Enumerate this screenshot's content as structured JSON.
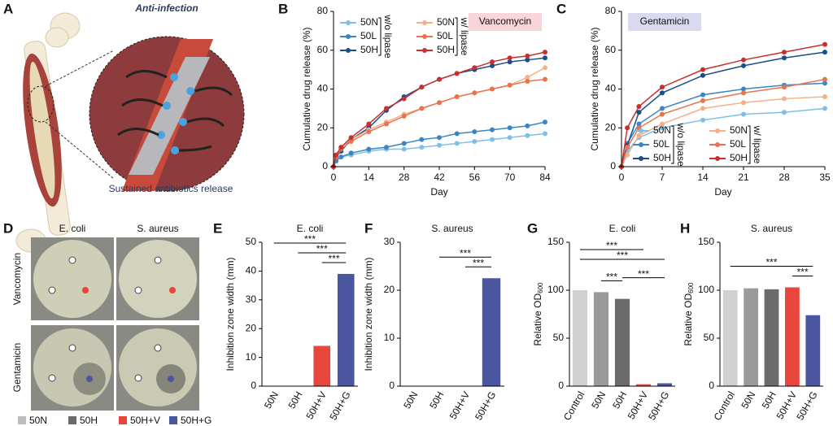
{
  "illustration": {
    "panel_label": "A",
    "title": "Anti-infection",
    "caption": "Sustained antibiotics release"
  },
  "photos": {
    "panel_label": "D",
    "columns": [
      "E. coli",
      "S. aureus"
    ],
    "rows": [
      "Vancomycin",
      "Gentamicin"
    ],
    "legend": [
      {
        "name": "50N",
        "color": "#bdbdbd"
      },
      {
        "name": "50H",
        "color": "#6b6b6b"
      },
      {
        "name": "50H+V",
        "color": "#e8463c"
      },
      {
        "name": "50H+G",
        "color": "#4a56a0"
      }
    ]
  },
  "chart_data": [
    {
      "panel_label": "B",
      "type": "line",
      "annotation": "Vancomycin",
      "annotation_color": "#f7d5d8",
      "xlabel": "Day",
      "ylabel": "Cumulative drug release (%)",
      "x": [
        0,
        1,
        3,
        7,
        14,
        21,
        28,
        35,
        42,
        49,
        56,
        63,
        70,
        77,
        84
      ],
      "xlim": [
        0,
        84
      ],
      "xticks": [
        0,
        14,
        28,
        42,
        56,
        70,
        84
      ],
      "ylim": [
        0,
        80
      ],
      "yticks": [
        0,
        20,
        40,
        60,
        80
      ],
      "legend": "upper left",
      "legend_groups": [
        {
          "label": "w/o lipase",
          "series": [
            0,
            1,
            2
          ]
        },
        {
          "label": "w/ lipase",
          "series": [
            3,
            4,
            5
          ]
        }
      ],
      "series": [
        {
          "name": "50N",
          "color": "#7fbfe6",
          "values": [
            0,
            3,
            5,
            6,
            8,
            9,
            9,
            10,
            11,
            12,
            13,
            14,
            15,
            16,
            17
          ]
        },
        {
          "name": "50L",
          "color": "#3a86c0",
          "values": [
            0,
            3,
            5,
            7,
            9,
            10,
            12,
            14,
            15,
            17,
            18,
            19,
            20,
            21,
            23
          ]
        },
        {
          "name": "50H",
          "color": "#1a4d8c",
          "values": [
            0,
            5,
            8,
            14,
            20,
            29,
            36,
            41,
            45,
            48,
            50,
            52,
            54,
            55,
            56
          ]
        },
        {
          "name": "50N",
          "color": "#f4b08a",
          "values": [
            0,
            6,
            10,
            14,
            19,
            23,
            27,
            30,
            33,
            36,
            38,
            40,
            42,
            46,
            51
          ]
        },
        {
          "name": "50L",
          "color": "#e8734e",
          "values": [
            0,
            5,
            9,
            13,
            18,
            22,
            26,
            30,
            33,
            36,
            38,
            40,
            42,
            44,
            45
          ]
        },
        {
          "name": "50H",
          "color": "#c8302e",
          "values": [
            0,
            6,
            10,
            15,
            22,
            30,
            35,
            41,
            45,
            48,
            51,
            54,
            56,
            57,
            59
          ]
        }
      ]
    },
    {
      "panel_label": "C",
      "type": "line",
      "annotation": "Gentamicin",
      "annotation_color": "#d9d9ef",
      "xlabel": "Day",
      "ylabel": "Cumulative drug release (%)",
      "x": [
        0,
        1,
        3,
        7,
        14,
        21,
        28,
        35
      ],
      "xlim": [
        0,
        35
      ],
      "xticks": [
        0,
        7,
        14,
        21,
        28,
        35
      ],
      "ylim": [
        0,
        80
      ],
      "yticks": [
        0,
        20,
        40,
        60,
        80
      ],
      "legend": "lower right",
      "legend_groups": [
        {
          "label": "w/o lipase",
          "series": [
            0,
            1,
            2
          ]
        },
        {
          "label": "w/ lipase",
          "series": [
            3,
            4,
            5
          ]
        }
      ],
      "series": [
        {
          "name": "50N",
          "color": "#7fbfe6",
          "values": [
            0,
            8,
            15,
            20,
            24,
            27,
            28,
            30
          ]
        },
        {
          "name": "50L",
          "color": "#3a86c0",
          "values": [
            0,
            12,
            22,
            30,
            37,
            40,
            42,
            43
          ]
        },
        {
          "name": "50H",
          "color": "#1a4d8c",
          "values": [
            0,
            11,
            28,
            38,
            47,
            52,
            56,
            59
          ]
        },
        {
          "name": "50N",
          "color": "#f4b08a",
          "values": [
            0,
            6,
            16,
            22,
            30,
            33,
            35,
            36
          ]
        },
        {
          "name": "50L",
          "color": "#e8734e",
          "values": [
            0,
            10,
            20,
            27,
            34,
            38,
            41,
            45
          ]
        },
        {
          "name": "50H",
          "color": "#c8302e",
          "values": [
            0,
            20,
            31,
            41,
            50,
            55,
            59,
            63
          ]
        }
      ]
    },
    {
      "panel_label": "E",
      "type": "bar",
      "title": "E. coli",
      "ylabel": "Inhibition zone width (mm)",
      "categories": [
        "50N",
        "50H",
        "50H+V",
        "50H+G"
      ],
      "values": [
        0,
        0,
        14,
        39
      ],
      "colors": [
        "#bdbdbd",
        "#6b6b6b",
        "#e8463c",
        "#4a56a0"
      ],
      "ylim": [
        0,
        50
      ],
      "yticks": [
        0,
        10,
        20,
        30,
        40,
        50
      ],
      "significance": [
        {
          "label": "***",
          "pair": [
            2,
            3
          ]
        },
        {
          "label": "***",
          "pair": [
            1,
            3
          ]
        },
        {
          "label": "***",
          "pair": [
            0,
            3
          ]
        }
      ]
    },
    {
      "panel_label": "F",
      "type": "bar",
      "title": "S. aureus",
      "ylabel": "Inhibition zone width (mm)",
      "categories": [
        "50N",
        "50H",
        "50H+V",
        "50H+G"
      ],
      "values": [
        0,
        0,
        0,
        22.5
      ],
      "colors": [
        "#bdbdbd",
        "#6b6b6b",
        "#e8463c",
        "#4a56a0"
      ],
      "ylim": [
        0,
        30
      ],
      "yticks": [
        0,
        10,
        20,
        30
      ],
      "significance": [
        {
          "label": "***",
          "pair": [
            2,
            3
          ]
        },
        {
          "label": "***",
          "pair": [
            1,
            3
          ]
        }
      ]
    },
    {
      "panel_label": "G",
      "type": "bar",
      "title": "E. coli",
      "ylabel": "Relative OD",
      "ylabel_subscript": "600",
      "categories": [
        "Control",
        "50N",
        "50H",
        "50H+V",
        "50H+G"
      ],
      "values": [
        100,
        98,
        91,
        2,
        3
      ],
      "colors": [
        "#d0d0d0",
        "#9a9a9a",
        "#6b6b6b",
        "#e8463c",
        "#4a56a0"
      ],
      "ylim": [
        0,
        150
      ],
      "yticks": [
        0,
        50,
        100,
        150
      ],
      "significance": [
        {
          "label": "***",
          "pair": [
            1,
            2
          ]
        },
        {
          "label": "***",
          "pair": [
            2,
            4
          ]
        },
        {
          "label": "***",
          "pair": [
            0,
            4
          ]
        },
        {
          "label": "***",
          "pair": [
            0,
            3
          ]
        }
      ]
    },
    {
      "panel_label": "H",
      "type": "bar",
      "title": "S. aureus",
      "ylabel": "Relative OD",
      "ylabel_subscript": "600",
      "categories": [
        "Control",
        "50N",
        "50H",
        "50H+V",
        "50H+G"
      ],
      "values": [
        100,
        102,
        101,
        103,
        74
      ],
      "colors": [
        "#d0d0d0",
        "#9a9a9a",
        "#6b6b6b",
        "#e8463c",
        "#4a56a0"
      ],
      "ylim": [
        0,
        150
      ],
      "yticks": [
        0,
        50,
        100,
        150
      ],
      "significance": [
        {
          "label": "***",
          "pair": [
            3,
            4
          ]
        },
        {
          "label": "***",
          "pair": [
            0,
            4
          ]
        }
      ]
    }
  ]
}
